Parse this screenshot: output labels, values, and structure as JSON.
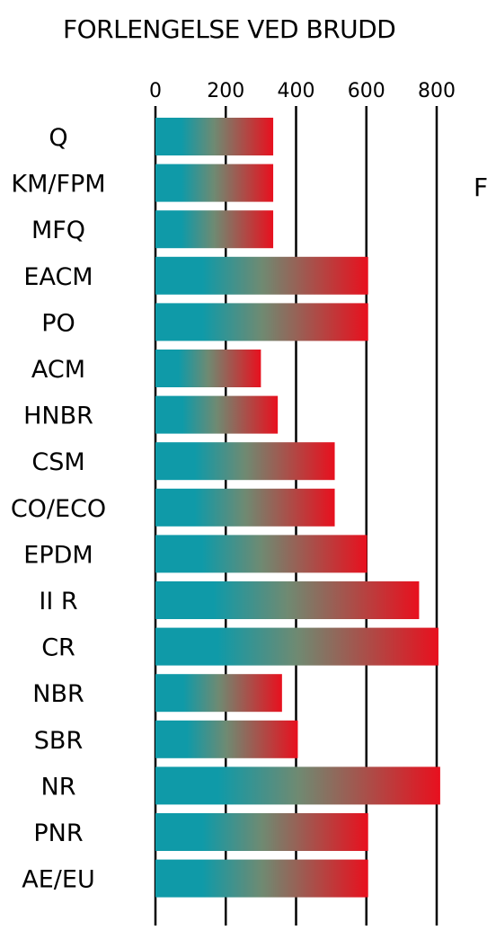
{
  "chart_data": {
    "type": "bar",
    "orientation": "horizontal",
    "title": "FORLENGELSE VED BRUDD",
    "side_label": "F",
    "categories": [
      "Q",
      "KM/FPM",
      "MFQ",
      "EACM",
      "PO",
      "ACM",
      "HNBR",
      "CSM",
      "CO/ECO",
      "EPDM",
      "II R",
      "CR",
      "NBR",
      "SBR",
      "NR",
      "PNR",
      "AE/EU"
    ],
    "values": [
      335,
      335,
      335,
      605,
      605,
      300,
      348,
      510,
      510,
      602,
      750,
      805,
      360,
      405,
      810,
      605,
      605
    ],
    "xlim": [
      0,
      800
    ],
    "xticks": [
      "0",
      "200",
      "400",
      "600",
      "800"
    ],
    "xtick_values": [
      0,
      200,
      400,
      600,
      800
    ],
    "grid": true,
    "colors": {
      "start": "#0f9aa8",
      "end": "#e8101e",
      "mid": "#6f8a72"
    }
  }
}
